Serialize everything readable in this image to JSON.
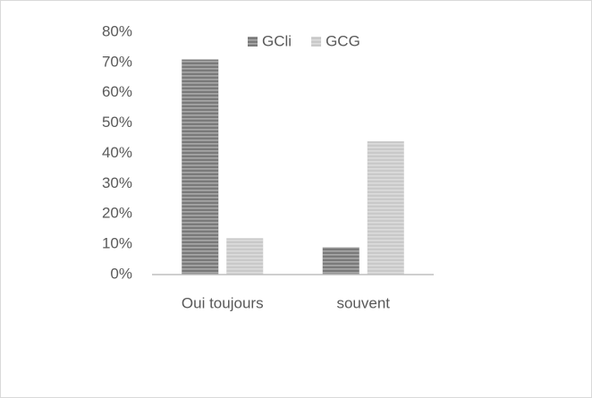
{
  "chart_data": {
    "type": "bar",
    "categories": [
      "Oui toujours",
      "souvent"
    ],
    "series": [
      {
        "name": "GCli",
        "color": "#7a7a7a",
        "values": [
          71,
          9
        ]
      },
      {
        "name": "GCG",
        "color": "#c9c9c9",
        "values": [
          12,
          44
        ]
      }
    ],
    "ylim": [
      0,
      80
    ],
    "yticks": [
      {
        "value": 0,
        "label": "0%"
      },
      {
        "value": 10,
        "label": "10%"
      },
      {
        "value": 20,
        "label": "20%"
      },
      {
        "value": 30,
        "label": "30%"
      },
      {
        "value": 40,
        "label": "40%"
      },
      {
        "value": 50,
        "label": "50%"
      },
      {
        "value": 60,
        "label": "60%"
      },
      {
        "value": 70,
        "label": "70%"
      },
      {
        "value": 80,
        "label": "80%"
      }
    ],
    "grid": false,
    "legend": "top"
  }
}
